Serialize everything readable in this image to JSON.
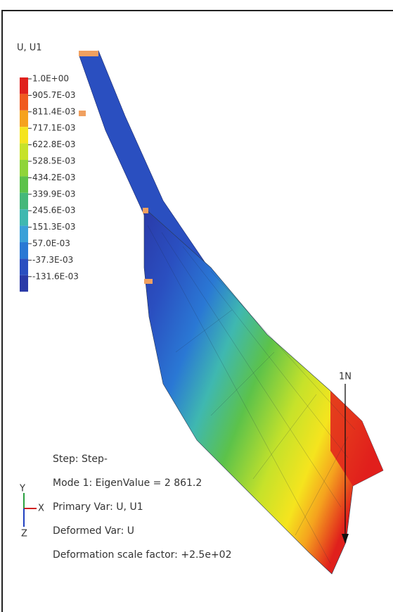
{
  "legend": {
    "title": "U, U1",
    "labels": [
      "1.0E+00",
      "905.7E-03",
      "811.4E-03",
      "717.1E-03",
      "622.8E-03",
      "528.5E-03",
      "434.2E-03",
      "339.9E-03",
      "245.6E-03",
      "151.3E-03",
      "57.0E-03",
      "-37.3E-03",
      "-131.6E-03"
    ]
  },
  "load_label": "1N",
  "triad": {
    "y": "Y",
    "x": "X",
    "z": "Z"
  },
  "info": [
    "Step: Step-",
    "Mode 1: EigenValue = 2 861.2",
    "Primary Var: U, U1",
    "Deformed Var: U",
    "Deformation scale factor: +2.5e+02"
  ]
}
